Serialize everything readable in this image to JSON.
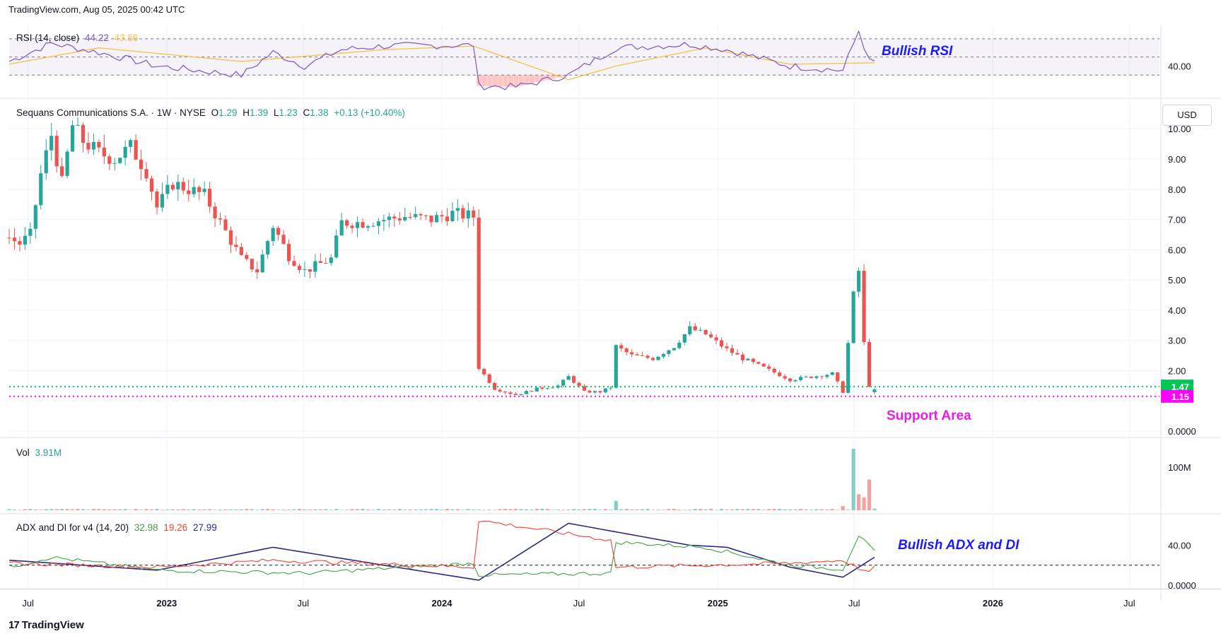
{
  "header": {
    "site": "TradingView.com",
    "datetime": "Aug 05, 2025 00:42 UTC"
  },
  "brand": {
    "name": "TradingView",
    "logo_icon": "tv-logo-icon"
  },
  "price_axis": {
    "currency": "USD"
  },
  "colors": {
    "up": "#26a69a",
    "down": "#ef5350",
    "rsi": "#7e57c2",
    "rsi_ma": "#f5c242",
    "adx": "#2c2c84",
    "di_plus": "#43a047",
    "di_minus": "#f44336",
    "support": "#ff00ff",
    "current_price": "#00c853",
    "annotation_blue": "#1a1aff",
    "annotation_magenta": "#e91ee5"
  },
  "chart_data": [
    {
      "type": "candlestick",
      "title": "Sequans Communications S.A. · 1W · NYSE",
      "ohlc_label": {
        "o": "1.29",
        "h": "1.39",
        "l": "1.23",
        "c": "1.38",
        "change": "+0.13 (+10.40%)"
      },
      "y_ticks": [
        "10.00",
        "9.00",
        "8.00",
        "7.00",
        "6.00",
        "5.00",
        "4.00",
        "3.00",
        "2.00",
        "0.0000"
      ],
      "y_tick_values": [
        10,
        9,
        8,
        7,
        6,
        5,
        4,
        3,
        2,
        0
      ],
      "ylim": [
        0,
        10.8
      ],
      "x_ticks": [
        "Jul",
        "2023",
        "Jul",
        "2024",
        "Jul",
        "2025",
        "Jul",
        "2026",
        "Jul"
      ],
      "x_tick_dates": [
        "2022-07-01",
        "2023-01-01",
        "2023-07-01",
        "2024-01-01",
        "2024-07-01",
        "2025-01-01",
        "2025-07-01",
        "2026-01-01",
        "2026-07-01"
      ],
      "weeks_start": "2022-06-06",
      "close_path": [
        [
          "2022-06-06",
          6.4
        ],
        [
          "2022-06-20",
          6.2
        ],
        [
          "2022-07-04",
          6.5
        ],
        [
          "2022-07-18",
          8.5
        ],
        [
          "2022-08-01",
          9.8
        ],
        [
          "2022-08-15",
          8.2
        ],
        [
          "2022-08-29",
          10.1
        ],
        [
          "2022-09-12",
          9.6
        ],
        [
          "2022-10-03",
          9.2
        ],
        [
          "2022-10-24",
          9.0
        ],
        [
          "2022-11-14",
          9.4
        ],
        [
          "2022-12-05",
          8.6
        ],
        [
          "2022-12-19",
          7.4
        ],
        [
          "2023-01-09",
          8.2
        ],
        [
          "2023-01-30",
          8.0
        ],
        [
          "2023-02-20",
          7.8
        ],
        [
          "2023-03-06",
          7.2
        ],
        [
          "2023-03-20",
          6.6
        ],
        [
          "2023-04-10",
          5.7
        ],
        [
          "2023-05-01",
          5.3
        ],
        [
          "2023-05-22",
          6.8
        ],
        [
          "2023-06-12",
          5.8
        ],
        [
          "2023-07-03",
          5.3
        ],
        [
          "2023-08-07",
          5.7
        ],
        [
          "2023-08-21",
          6.9
        ],
        [
          "2023-09-18",
          6.9
        ],
        [
          "2023-10-16",
          7.0
        ],
        [
          "2023-11-13",
          7.1
        ],
        [
          "2023-12-18",
          7.0
        ],
        [
          "2024-01-15",
          7.2
        ],
        [
          "2024-02-12",
          7.1
        ],
        [
          "2024-02-19",
          2.1
        ],
        [
          "2024-03-11",
          1.4
        ],
        [
          "2024-04-08",
          1.2
        ],
        [
          "2024-05-06",
          1.4
        ],
        [
          "2024-06-03",
          1.5
        ],
        [
          "2024-06-17",
          1.8
        ],
        [
          "2024-07-08",
          1.3
        ],
        [
          "2024-07-29",
          1.3
        ],
        [
          "2024-08-12",
          1.45
        ],
        [
          "2024-08-19",
          2.8
        ],
        [
          "2024-09-09",
          2.5
        ],
        [
          "2024-10-07",
          2.4
        ],
        [
          "2024-11-04",
          2.8
        ],
        [
          "2024-11-25",
          3.4
        ],
        [
          "2024-12-16",
          3.2
        ],
        [
          "2025-01-13",
          2.7
        ],
        [
          "2025-02-03",
          2.4
        ],
        [
          "2025-03-03",
          2.1
        ],
        [
          "2025-04-07",
          1.7
        ],
        [
          "2025-05-05",
          1.8
        ],
        [
          "2025-06-02",
          1.9
        ],
        [
          "2025-06-16",
          1.3
        ],
        [
          "2025-06-30",
          4.5
        ],
        [
          "2025-07-07",
          5.3
        ],
        [
          "2025-07-14",
          2.9
        ],
        [
          "2025-07-21",
          1.5
        ],
        [
          "2025-07-28",
          1.38
        ]
      ],
      "last_price": 1.47,
      "last_price_label": "1.47",
      "support_price": 1.15,
      "support_label": "1.15",
      "annotations": [
        "Support Area"
      ]
    },
    {
      "type": "line",
      "title": "RSI (14, close)",
      "values_label": {
        "rsi": "44.22",
        "rsi_ma": "43.56"
      },
      "y_ticks": [
        "40.00"
      ],
      "y_tick_values": [
        40
      ],
      "bands": [
        70,
        50,
        30
      ],
      "ylim": [
        10,
        80
      ],
      "series": [
        {
          "name": "RSI",
          "points": [
            [
              "2022-06-06",
              45
            ],
            [
              "2022-08-01",
              65
            ],
            [
              "2022-10-03",
              55
            ],
            [
              "2022-12-19",
              40
            ],
            [
              "2023-04-10",
              30
            ],
            [
              "2023-05-22",
              55
            ],
            [
              "2023-07-03",
              40
            ],
            [
              "2023-08-21",
              58
            ],
            [
              "2023-10-16",
              62
            ],
            [
              "2024-02-12",
              63
            ],
            [
              "2024-02-19",
              18
            ],
            [
              "2024-04-08",
              17
            ],
            [
              "2024-06-17",
              30
            ],
            [
              "2024-08-19",
              60
            ],
            [
              "2024-11-25",
              64
            ],
            [
              "2025-01-13",
              58
            ],
            [
              "2025-04-07",
              40
            ],
            [
              "2025-06-16",
              35
            ],
            [
              "2025-07-07",
              79
            ],
            [
              "2025-07-21",
              45
            ],
            [
              "2025-07-28",
              44.22
            ]
          ]
        },
        {
          "name": "RSI MA",
          "points": [
            [
              "2022-06-06",
              42
            ],
            [
              "2022-10-03",
              60
            ],
            [
              "2023-04-10",
              45
            ],
            [
              "2023-10-16",
              58
            ],
            [
              "2024-02-12",
              62
            ],
            [
              "2024-06-17",
              25
            ],
            [
              "2024-08-19",
              40
            ],
            [
              "2024-12-16",
              60
            ],
            [
              "2025-04-07",
              42
            ],
            [
              "2025-07-28",
              43.56
            ]
          ]
        }
      ],
      "annotations": [
        "Bullish RSI"
      ]
    },
    {
      "type": "bar",
      "title": "Vol",
      "value_label": "3.91M",
      "y_ticks": [
        "100M"
      ],
      "y_tick_values": [
        100
      ],
      "ylim": [
        0,
        160
      ],
      "spikes": [
        [
          "2024-08-19",
          22,
          "up"
        ],
        [
          "2025-06-16",
          10,
          "down"
        ],
        [
          "2025-06-30",
          142,
          "up"
        ],
        [
          "2025-07-07",
          37,
          "down"
        ],
        [
          "2025-07-14",
          30,
          "down"
        ],
        [
          "2025-07-21",
          71,
          "down"
        ],
        [
          "2025-07-28",
          3.91,
          "up"
        ]
      ]
    },
    {
      "type": "line",
      "title": "ADX and DI for v4 (14, 20)",
      "values_label": {
        "di_plus": "32.98",
        "di_minus": "19.26",
        "adx": "27.99"
      },
      "y_ticks": [
        "40.00",
        "0.0000"
      ],
      "y_tick_values": [
        40,
        0
      ],
      "threshold": 20,
      "ylim": [
        0,
        68
      ],
      "series": [
        {
          "name": "ADX",
          "points": [
            [
              "2022-06-06",
              25
            ],
            [
              "2022-12-19",
              15
            ],
            [
              "2023-05-22",
              38
            ],
            [
              "2023-10-16",
              20
            ],
            [
              "2024-02-19",
              5
            ],
            [
              "2024-06-17",
              62
            ],
            [
              "2024-11-25",
              40
            ],
            [
              "2025-01-13",
              38
            ],
            [
              "2025-04-07",
              18
            ],
            [
              "2025-06-16",
              8
            ],
            [
              "2025-07-28",
              27.99
            ]
          ]
        },
        {
          "name": "+DI",
          "points": [
            [
              "2022-06-06",
              18
            ],
            [
              "2022-08-01",
              28
            ],
            [
              "2022-12-19",
              15
            ],
            [
              "2023-07-03",
              12
            ],
            [
              "2024-02-12",
              22
            ],
            [
              "2024-02-19",
              10
            ],
            [
              "2024-08-12",
              12
            ],
            [
              "2024-08-19",
              43
            ],
            [
              "2024-12-16",
              38
            ],
            [
              "2025-04-07",
              20
            ],
            [
              "2025-06-16",
              16
            ],
            [
              "2025-07-07",
              50
            ],
            [
              "2025-07-28",
              32.98
            ]
          ]
        },
        {
          "name": "-DI",
          "points": [
            [
              "2022-06-06",
              22
            ],
            [
              "2022-12-19",
              18
            ],
            [
              "2023-05-22",
              25
            ],
            [
              "2024-02-12",
              18
            ],
            [
              "2024-02-19",
              65
            ],
            [
              "2024-08-12",
              45
            ],
            [
              "2024-08-19",
              18
            ],
            [
              "2024-12-16",
              20
            ],
            [
              "2025-04-07",
              22
            ],
            [
              "2025-06-16",
              25
            ],
            [
              "2025-07-21",
              12
            ],
            [
              "2025-07-28",
              19.26
            ]
          ]
        }
      ],
      "annotations": [
        "Bullish ADX and DI"
      ]
    }
  ]
}
